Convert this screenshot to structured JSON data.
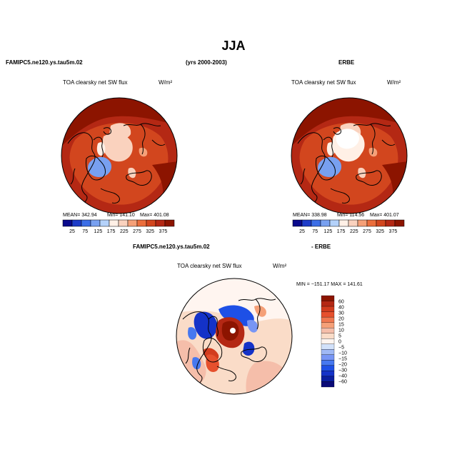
{
  "page": {
    "title": "JJA",
    "left_header": "FAMIPC5.ne120.ys.tau5m.02",
    "years": "(yrs 2000-2003)",
    "right_header": "ERBE",
    "bottom_header_left": "FAMIPC5.ne120.ys.tau5m.02",
    "bottom_header_right": "- ERBE"
  },
  "colors": {
    "land_outline": "#000000",
    "seq_scale": [
      "#0a0a8c",
      "#1e3cc8",
      "#3c6ee6",
      "#78a0f0",
      "#b4d2fa",
      "#fff0e6",
      "#fad2be",
      "#f5a078",
      "#eb6e3c",
      "#d2461e",
      "#b42814",
      "#8c1400"
    ],
    "div_scale": [
      "#0a0a78",
      "#0a1ea0",
      "#1432c8",
      "#1e50e6",
      "#4678f0",
      "#7896f5",
      "#a0b9f5",
      "#d2e1fa",
      "#fff5f0",
      "#fadcc8",
      "#f5beaa",
      "#f5a078",
      "#f07850",
      "#e6502d",
      "#d23c1e",
      "#b42814",
      "#8c1400"
    ]
  },
  "chart_data": [
    {
      "type": "heatmap",
      "projection": "north-polar-stereographic",
      "title": "TOA clearsky net SW flux",
      "units": "W/m²",
      "mean_label": "MEAN=  342.94",
      "min_label": "Min=  141.10",
      "max_label": "Max=  401.08",
      "stats": {
        "mean": 342.94,
        "min": 141.1,
        "max": 401.08
      },
      "colorbar_levels": [
        25,
        75,
        125,
        175,
        225,
        275,
        325,
        375
      ],
      "colorbar_placement": "bottom"
    },
    {
      "type": "heatmap",
      "projection": "north-polar-stereographic",
      "title": "TOA clearsky net SW flux",
      "units": "W/m²",
      "mean_label": "MEAN=  338.98",
      "min_label": "Min=  114.56",
      "max_label": "Max=  401.07",
      "stats": {
        "mean": 338.98,
        "min": 114.56,
        "max": 401.07
      },
      "colorbar_levels": [
        25,
        75,
        125,
        175,
        225,
        275,
        325,
        375
      ],
      "colorbar_placement": "bottom"
    },
    {
      "type": "heatmap",
      "projection": "north-polar-stereographic",
      "title": "TOA clearsky net SW flux",
      "units": "W/m²",
      "minmax_label": "MIN = −151.17  MAX = 141.61",
      "stats": {
        "min": -151.17,
        "max": 141.61
      },
      "colorbar_levels": [
        "60",
        "40",
        "30",
        "20",
        "15",
        "10",
        "5",
        "0",
        "−5",
        "−10",
        "−15",
        "−20",
        "−30",
        "−40",
        "−60"
      ],
      "colorbar_placement": "right"
    }
  ]
}
